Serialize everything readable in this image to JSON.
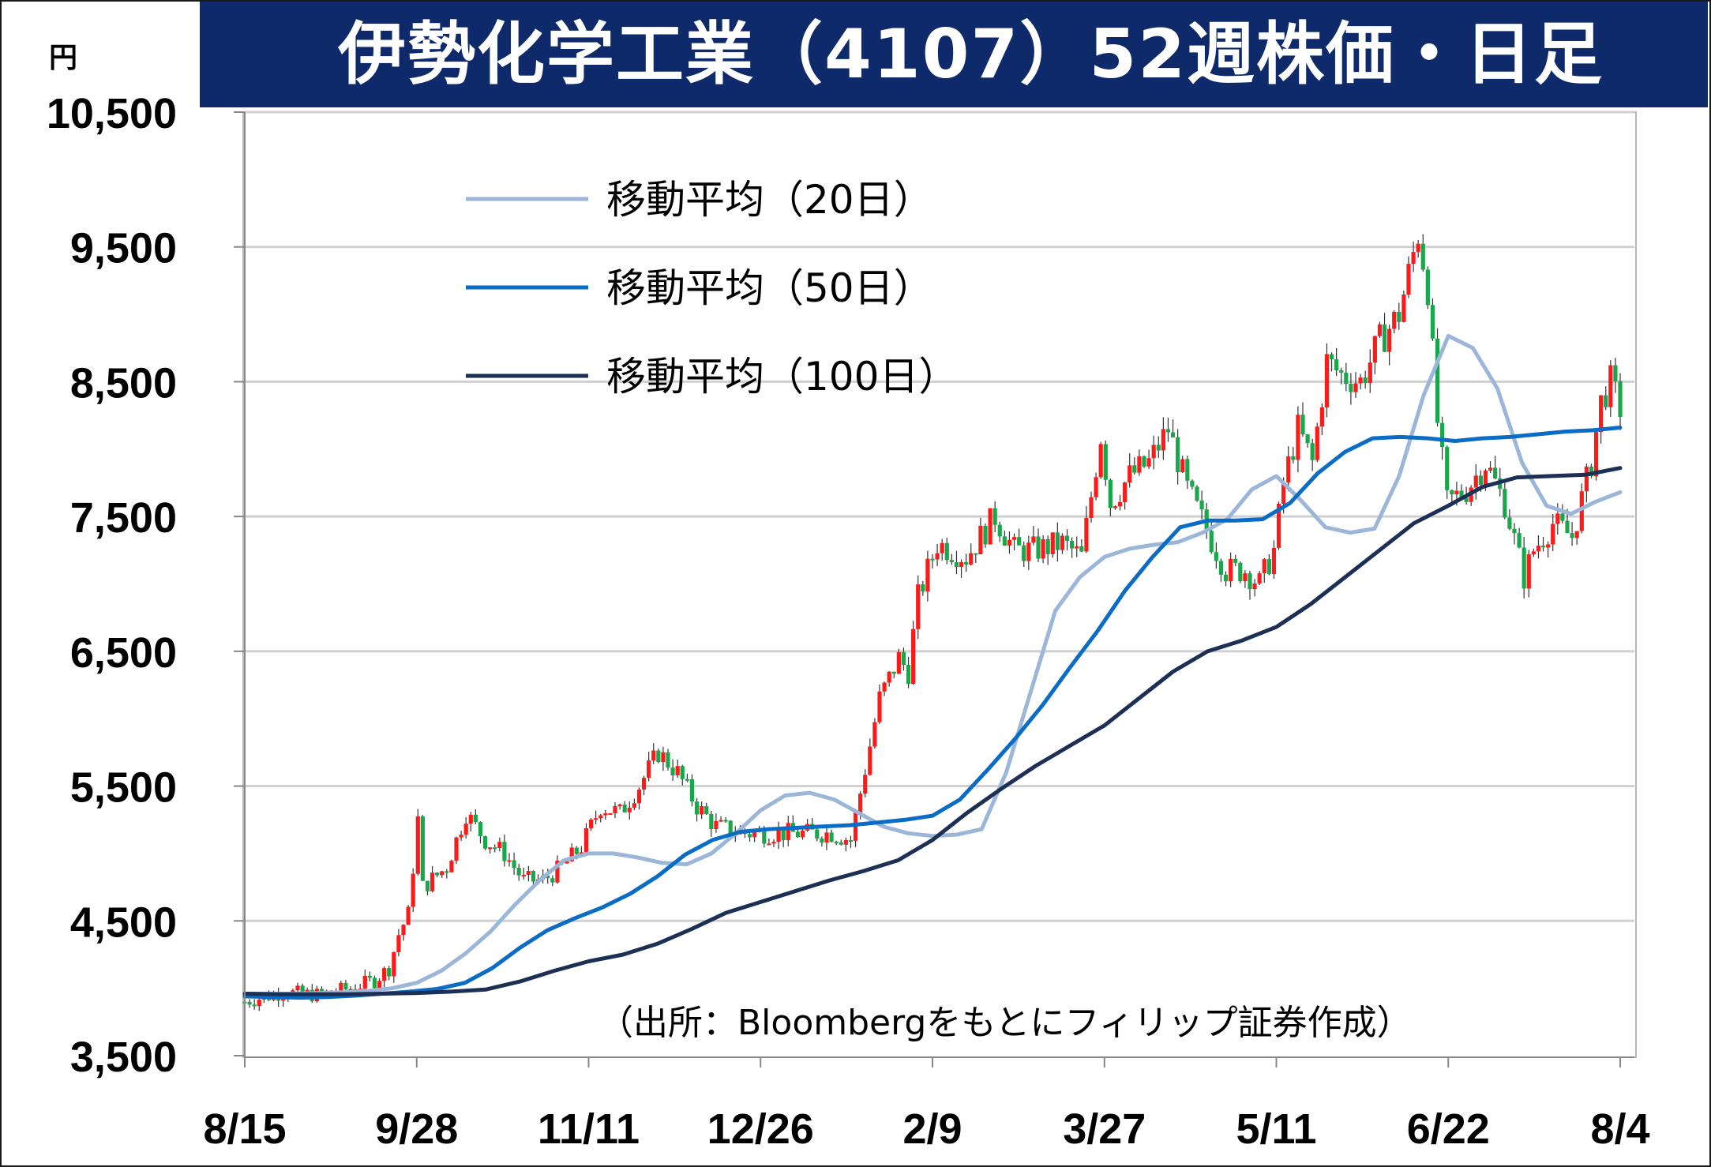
{
  "title": "伊勢化学工業（4107）52週株価・日足",
  "yunit": "円",
  "source": "（出所：Bloombergをもとにフィリップ証券作成）",
  "chart_data": {
    "type": "candlestick",
    "ylim": [
      3500,
      10500
    ],
    "yticks": [
      3500,
      4500,
      5500,
      6500,
      7500,
      8500,
      9500,
      10500
    ],
    "ytick_labels": [
      "3,500",
      "4,500",
      "5,500",
      "6,500",
      "7,500",
      "8,500",
      "9,500",
      "10,500"
    ],
    "xtick_labels": [
      "8/15",
      "9/28",
      "11/11",
      "12/26",
      "2/9",
      "3/27",
      "5/11",
      "6/22",
      "8/4"
    ],
    "grid": true,
    "up_color": "#ff1a1a",
    "down_color": "#1aa64a",
    "legend_position": "top-left",
    "series": [
      {
        "name": "移動平均（20日）",
        "color": "#9bb6d9",
        "values": [
          3960,
          3960,
          3960,
          3965,
          3970,
          3980,
          4000,
          4040,
          4130,
          4260,
          4420,
          4620,
          4800,
          4950,
          5000,
          5000,
          4970,
          4930,
          4920,
          5000,
          5150,
          5320,
          5430,
          5450,
          5400,
          5300,
          5200,
          5150,
          5130,
          5140,
          5180,
          5600,
          6200,
          6800,
          7050,
          7200,
          7260,
          7290,
          7310,
          7380,
          7480,
          7700,
          7800,
          7620,
          7420,
          7380,
          7410,
          7800,
          8400,
          8840,
          8750,
          8450,
          7900,
          7580,
          7520,
          7610,
          7680
        ]
      },
      {
        "name": "移動平均（50日）",
        "color": "#0a6cc4",
        "values": [
          3940,
          3935,
          3930,
          3935,
          3945,
          3960,
          3975,
          3995,
          4040,
          4150,
          4300,
          4430,
          4520,
          4600,
          4700,
          4830,
          4990,
          5100,
          5160,
          5180,
          5190,
          5200,
          5210,
          5230,
          5250,
          5280,
          5400,
          5620,
          5850,
          6100,
          6380,
          6650,
          6950,
          7200,
          7420,
          7470,
          7470,
          7480,
          7600,
          7820,
          7980,
          8080,
          8090,
          8080,
          8060,
          8080,
          8090,
          8110,
          8130,
          8140,
          8160
        ]
      },
      {
        "name": "移動平均（100日）",
        "color": "#1c2f55",
        "values": [
          3960,
          3955,
          3955,
          3955,
          3960,
          3965,
          3975,
          3990,
          4050,
          4130,
          4200,
          4250,
          4330,
          4440,
          4560,
          4640,
          4720,
          4800,
          4870,
          4950,
          5100,
          5300,
          5480,
          5650,
          5800,
          5950,
          6150,
          6350,
          6500,
          6580,
          6680,
          6850,
          7050,
          7250,
          7450,
          7580,
          7720,
          7790,
          7800,
          7810,
          7860
        ]
      }
    ]
  }
}
